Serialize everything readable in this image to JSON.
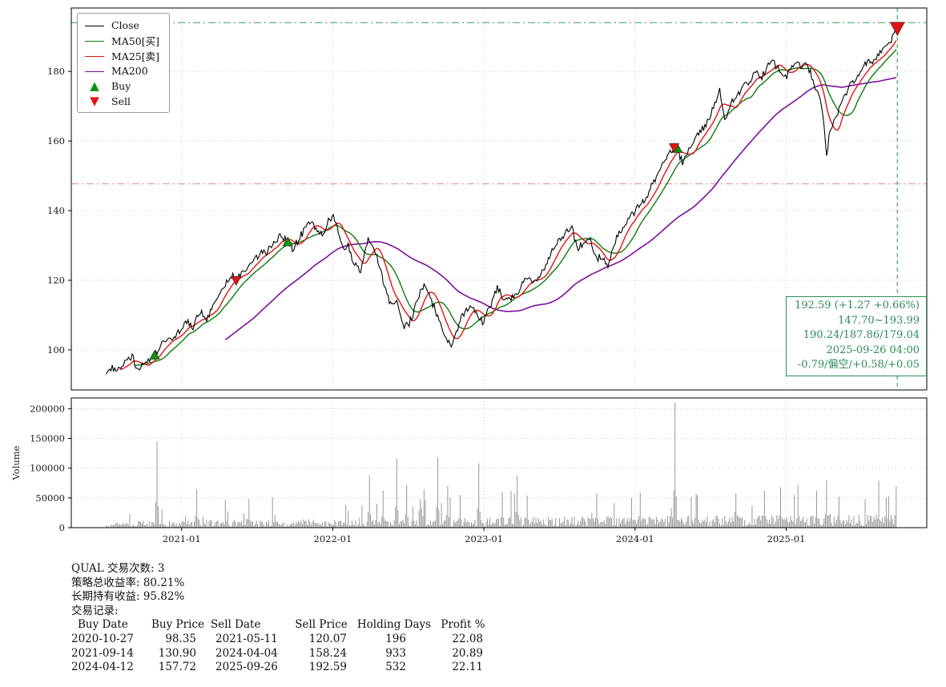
{
  "legend": {
    "items": [
      {
        "label": "Close",
        "type": "line",
        "color": "#000000"
      },
      {
        "label": "MA50[买]",
        "type": "line",
        "color": "#0e7a0e"
      },
      {
        "label": "MA25[卖]",
        "type": "line",
        "color": "#e01414"
      },
      {
        "label": "MA200",
        "type": "line",
        "color": "#7d0f9e"
      },
      {
        "label": "Buy",
        "type": "marker",
        "icon": "triangle-up-icon",
        "color": "#0c930c"
      },
      {
        "label": "Sell",
        "type": "marker",
        "icon": "triangle-down-icon",
        "color": "#e01414"
      }
    ]
  },
  "annotation": {
    "color": "#2e8b57",
    "lines": [
      "192.59 (+1.27 +0.66%)",
      "147.70~193.99",
      "190.24/187.86/179.04",
      "2025-09-26 04:00",
      "-0.79/偏空/+0.58/+0.05"
    ]
  },
  "summary": {
    "trade_count_line": "QUAL 交易次数: 3",
    "strategy_return_line": "策略总收益率: 80.21%",
    "hold_return_line": "长期持有收益: 95.82%",
    "records_title": "交易记录:"
  },
  "trades": {
    "headers": [
      "Buy Date",
      "Buy Price",
      "Sell Date",
      "Sell Price",
      "Holding Days",
      "Profit %"
    ],
    "rows": [
      [
        "2020-10-27",
        "98.35",
        "2021-05-11",
        "120.07",
        "196",
        "22.08"
      ],
      [
        "2021-09-14",
        "130.90",
        "2024-04-04",
        "158.24",
        "933",
        "20.89"
      ],
      [
        "2024-04-12",
        "157.72",
        "2025-09-26",
        "192.59",
        "532",
        "22.11"
      ]
    ]
  },
  "chart_data": {
    "type": "line",
    "title": "",
    "symbol": "QUAL",
    "x_axis": {
      "range": [
        2020.27,
        2025.93
      ],
      "ticks": [
        2021,
        2022,
        2023,
        2024,
        2025
      ],
      "tick_labels": [
        "2021-01",
        "2022-01",
        "2023-01",
        "2024-01",
        "2025-01"
      ]
    },
    "price_panel": {
      "ylim": [
        88.5,
        198.2
      ],
      "yticks": [
        100,
        120,
        140,
        160,
        180
      ],
      "colors": {
        "close": "#000000",
        "ma50": "#0e7a0e",
        "ma25": "#e01414",
        "ma200": "#7d0f9e",
        "buy": "#0c930c",
        "sell": "#e01414"
      },
      "legend_series": [
        "Close",
        "MA50[买]",
        "MA25[卖]",
        "MA200"
      ],
      "hlines": [
        {
          "value": 193.99,
          "color": "#2e9e4f",
          "style": "dashdot",
          "opacity": 0.85
        },
        {
          "value": 147.7,
          "color": "#e05a5a",
          "style": "dashdot",
          "opacity": 0.65
        }
      ],
      "vline": {
        "date": "2025-09-26",
        "color": "#2e9e4f",
        "style": "dashed"
      },
      "buy_markers": [
        {
          "date": "2020-10-27",
          "price": 98.35,
          "size": 12
        },
        {
          "date": "2021-09-14",
          "price": 130.9,
          "size": 12
        },
        {
          "date": "2024-04-12",
          "price": 157.72,
          "size": 12
        }
      ],
      "sell_markers": [
        {
          "date": "2021-05-11",
          "price": 120.07,
          "size": 12
        },
        {
          "date": "2024-04-04",
          "price": 158.24,
          "size": 12
        },
        {
          "date": "2025-09-26",
          "price": 192.59,
          "size": 18
        }
      ],
      "close_anchors": [
        [
          "2020-07-01",
          93.0
        ],
        [
          "2020-07-16",
          95.0
        ],
        [
          "2020-08-03",
          94.0
        ],
        [
          "2020-08-18",
          96.5
        ],
        [
          "2020-09-02",
          98.0
        ],
        [
          "2020-09-18",
          94.0
        ],
        [
          "2020-10-05",
          96.5
        ],
        [
          "2020-10-27",
          98.3
        ],
        [
          "2020-11-10",
          101.0
        ],
        [
          "2020-11-25",
          103.0
        ],
        [
          "2020-12-10",
          104.0
        ],
        [
          "2020-12-28",
          105.5
        ],
        [
          "2021-01-12",
          108.0
        ],
        [
          "2021-01-29",
          106.5
        ],
        [
          "2021-02-12",
          111.0
        ],
        [
          "2021-03-01",
          109.0
        ],
        [
          "2021-03-16",
          112.0
        ],
        [
          "2021-04-01",
          116.0
        ],
        [
          "2021-04-16",
          119.0
        ],
        [
          "2021-05-03",
          121.5
        ],
        [
          "2021-05-12",
          120.1
        ],
        [
          "2021-05-26",
          122.0
        ],
        [
          "2021-06-10",
          124.0
        ],
        [
          "2021-06-25",
          126.0
        ],
        [
          "2021-07-12",
          127.5
        ],
        [
          "2021-07-27",
          129.0
        ],
        [
          "2021-08-11",
          131.0
        ],
        [
          "2021-08-26",
          133.0
        ],
        [
          "2021-09-14",
          130.9
        ],
        [
          "2021-09-28",
          129.0
        ],
        [
          "2021-10-12",
          132.0
        ],
        [
          "2021-10-26",
          135.0
        ],
        [
          "2021-11-09",
          137.0
        ],
        [
          "2021-11-23",
          134.0
        ],
        [
          "2021-12-07",
          133.0
        ],
        [
          "2021-12-21",
          137.0
        ],
        [
          "2022-01-04",
          138.0
        ],
        [
          "2022-01-18",
          133.0
        ],
        [
          "2022-01-28",
          128.0
        ],
        [
          "2022-02-09",
          130.0
        ],
        [
          "2022-02-23",
          124.0
        ],
        [
          "2022-03-08",
          123.0
        ],
        [
          "2022-03-25",
          132.0
        ],
        [
          "2022-04-08",
          130.0
        ],
        [
          "2022-04-22",
          124.0
        ],
        [
          "2022-05-06",
          118.0
        ],
        [
          "2022-05-20",
          112.0
        ],
        [
          "2022-06-06",
          114.0
        ],
        [
          "2022-06-17",
          106.0
        ],
        [
          "2022-07-01",
          107.0
        ],
        [
          "2022-07-20",
          113.0
        ],
        [
          "2022-08-10",
          119.0
        ],
        [
          "2022-08-26",
          114.0
        ],
        [
          "2022-09-13",
          109.0
        ],
        [
          "2022-09-30",
          103.5
        ],
        [
          "2022-10-14",
          101.0
        ],
        [
          "2022-10-28",
          106.0
        ],
        [
          "2022-11-11",
          110.0
        ],
        [
          "2022-11-30",
          113.0
        ],
        [
          "2022-12-16",
          110.0
        ],
        [
          "2022-12-30",
          108.0
        ],
        [
          "2023-01-17",
          113.0
        ],
        [
          "2023-02-02",
          118.0
        ],
        [
          "2023-02-21",
          114.0
        ],
        [
          "2023-03-10",
          115.0
        ],
        [
          "2023-03-24",
          117.0
        ],
        [
          "2023-04-06",
          120.0
        ],
        [
          "2023-04-21",
          121.0
        ],
        [
          "2023-05-04",
          119.0
        ],
        [
          "2023-05-19",
          122.0
        ],
        [
          "2023-06-02",
          125.0
        ],
        [
          "2023-06-16",
          129.0
        ],
        [
          "2023-06-30",
          131.0
        ],
        [
          "2023-07-18",
          134.0
        ],
        [
          "2023-07-31",
          135.0
        ],
        [
          "2023-08-15",
          129.0
        ],
        [
          "2023-08-29",
          131.0
        ],
        [
          "2023-09-12",
          132.0
        ],
        [
          "2023-09-26",
          127.0
        ],
        [
          "2023-10-10",
          126.0
        ],
        [
          "2023-10-27",
          124.0
        ],
        [
          "2023-11-10",
          130.0
        ],
        [
          "2023-11-24",
          134.0
        ],
        [
          "2023-12-08",
          136.0
        ],
        [
          "2023-12-22",
          139.0
        ],
        [
          "2024-01-09",
          141.0
        ],
        [
          "2024-01-23",
          143.0
        ],
        [
          "2024-02-06",
          146.0
        ],
        [
          "2024-02-20",
          149.0
        ],
        [
          "2024-03-05",
          153.0
        ],
        [
          "2024-03-19",
          156.0
        ],
        [
          "2024-04-04",
          158.2
        ],
        [
          "2024-04-12",
          157.7
        ],
        [
          "2024-04-26",
          154.0
        ],
        [
          "2024-05-10",
          158.0
        ],
        [
          "2024-05-24",
          160.0
        ],
        [
          "2024-06-07",
          163.0
        ],
        [
          "2024-06-21",
          165.0
        ],
        [
          "2024-07-09",
          170.0
        ],
        [
          "2024-07-23",
          174.0
        ],
        [
          "2024-08-06",
          166.0
        ],
        [
          "2024-08-20",
          171.0
        ],
        [
          "2024-09-06",
          173.0
        ],
        [
          "2024-09-20",
          176.0
        ],
        [
          "2024-10-04",
          177.0
        ],
        [
          "2024-10-18",
          180.0
        ],
        [
          "2024-11-01",
          178.0
        ],
        [
          "2024-11-15",
          181.0
        ],
        [
          "2024-11-29",
          183.0
        ],
        [
          "2024-12-13",
          181.0
        ],
        [
          "2024-12-27",
          178.0
        ],
        [
          "2025-01-10",
          180.0
        ],
        [
          "2025-01-24",
          183.0
        ],
        [
          "2025-02-07",
          181.0
        ],
        [
          "2025-02-21",
          183.0
        ],
        [
          "2025-03-07",
          176.0
        ],
        [
          "2025-03-21",
          172.0
        ],
        [
          "2025-03-28",
          168.0
        ],
        [
          "2025-04-04",
          160.0
        ],
        [
          "2025-04-08",
          155.0
        ],
        [
          "2025-04-14",
          162.0
        ],
        [
          "2025-04-25",
          166.0
        ],
        [
          "2025-05-07",
          169.0
        ],
        [
          "2025-05-20",
          173.0
        ],
        [
          "2025-06-03",
          176.0
        ],
        [
          "2025-06-17",
          178.0
        ],
        [
          "2025-07-01",
          181.0
        ],
        [
          "2025-07-15",
          183.0
        ],
        [
          "2025-07-29",
          182.0
        ],
        [
          "2025-08-12",
          185.0
        ],
        [
          "2025-08-26",
          187.0
        ],
        [
          "2025-09-10",
          189.0
        ],
        [
          "2025-09-26",
          192.6
        ]
      ]
    },
    "volume_panel": {
      "ylabel": "Volume",
      "ylim": [
        0,
        218000
      ],
      "yticks": [
        0,
        50000,
        100000,
        150000,
        200000
      ],
      "color": "#999999",
      "baseline": 12000,
      "spikes": [
        [
          "2020-11-02",
          145000
        ],
        [
          "2021-02-08",
          65000
        ],
        [
          "2021-06-10",
          48000
        ],
        [
          "2022-03-28",
          88000
        ],
        [
          "2022-05-01",
          62000
        ],
        [
          "2022-06-03",
          116000
        ],
        [
          "2022-06-28",
          72000
        ],
        [
          "2022-08-08",
          64000
        ],
        [
          "2022-09-10",
          118000
        ],
        [
          "2022-10-05",
          70000
        ],
        [
          "2022-11-03",
          55000
        ],
        [
          "2022-12-20",
          108000
        ],
        [
          "2023-02-15",
          60000
        ],
        [
          "2023-03-20",
          88000
        ],
        [
          "2023-04-14",
          54000
        ],
        [
          "2023-10-01",
          58000
        ],
        [
          "2023-12-22",
          50000
        ],
        [
          "2024-04-05",
          210000
        ],
        [
          "2024-05-29",
          54000
        ],
        [
          "2024-09-02",
          58000
        ],
        [
          "2024-11-08",
          62000
        ],
        [
          "2024-12-18",
          68000
        ],
        [
          "2025-03-14",
          62000
        ],
        [
          "2025-04-07",
          80000
        ],
        [
          "2025-05-08",
          52000
        ],
        [
          "2025-09-24",
          70000
        ]
      ]
    }
  }
}
